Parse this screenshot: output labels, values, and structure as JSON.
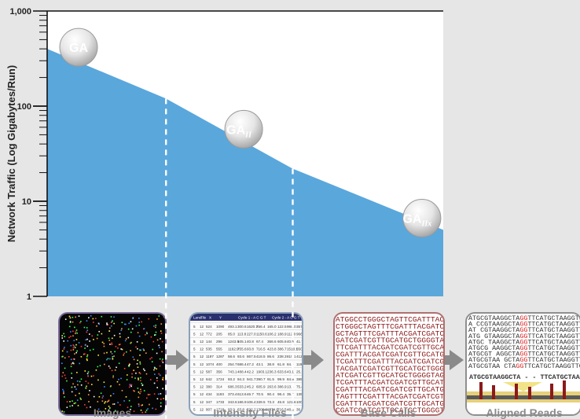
{
  "chart_data": {
    "type": "area",
    "title": "",
    "xlabel": "",
    "ylabel": "Network Traffic (Log Gigabytes/Run)",
    "yscale": "log",
    "ylim": [
      1,
      1000
    ],
    "yticks": [
      {
        "value": 1,
        "label": "1"
      },
      {
        "value": 10,
        "label": "10"
      },
      {
        "value": 100,
        "label": "100"
      },
      {
        "value": 1000,
        "label": "1,000"
      }
    ],
    "x": [
      0,
      0.3,
      0.62,
      1
    ],
    "values": [
      400,
      120,
      22,
      5
    ],
    "annotations": [
      {
        "label": "GA",
        "sub": "",
        "x": 0.0,
        "y": 400
      },
      {
        "label": "GA",
        "sub": "II",
        "x": 0.52,
        "y": 55
      },
      {
        "label": "GA",
        "sub": "IIx",
        "x": 0.97,
        "y": 6.4
      }
    ],
    "dashed_markers": [
      {
        "x": 0.3,
        "y": 120
      },
      {
        "x": 0.62,
        "y": 22
      }
    ],
    "fill_color": "#5aa7dc",
    "background": "#ffffff"
  },
  "pipeline": [
    {
      "label": "Images",
      "icon": "microscope-image-icon"
    },
    {
      "label": "Intensity Files",
      "icon": "table-icon"
    },
    {
      "label": "Base Calls",
      "icon": "sequence-text-icon"
    },
    {
      "label": "Aligned Reads",
      "icon": "alignment-icon"
    }
  ],
  "table_header": [
    "Lane",
    "Tile",
    "X",
    "Y",
    "Cycle 1 - A C G T",
    "Cycle 2 - A C G T"
  ],
  "table_rows": [
    [
      "5",
      "12",
      "524",
      "1090",
      "493.1",
      "300.6",
      "1620.7",
      "256.4",
      "165.0",
      "122.5",
      "966.0",
      "357.8"
    ],
    [
      "5",
      "12",
      "772",
      "205",
      "85.0",
      "113.8",
      "227.0",
      "1150.6",
      "106.2",
      "188.9",
      "112.0",
      "966.8"
    ],
    [
      "5",
      "12",
      "144",
      "296",
      "1243.9",
      "105.1",
      "40.8",
      "67.4",
      "366.6",
      "605.8",
      "40.5",
      "41.7"
    ],
    [
      "5",
      "12",
      "535",
      "555",
      "1162.9",
      "755.6",
      "93.8",
      "716.5",
      "423.8",
      "386.7",
      "1510.1",
      "550.6"
    ],
    [
      "5",
      "12",
      "1197",
      "1287",
      "58.6",
      "93.6",
      "867.5",
      "418.5",
      "86.6",
      "238.3",
      "815.1",
      "412.1"
    ],
    [
      "5",
      "12",
      "1074",
      "400",
      "254.7",
      "686.4",
      "47.2",
      "43.1",
      "38.8",
      "61.8",
      "84.9",
      "1192.9"
    ],
    [
      "5",
      "12",
      "587",
      "356",
      "743.1",
      "488.4",
      "42.2",
      "1903.1",
      "236.3",
      "633.6",
      "43.1",
      "25.1"
    ],
    [
      "5",
      "12",
      "642",
      "1724",
      "93.2",
      "94.3",
      "941.7",
      "390.7",
      "91.5",
      "99.9",
      "84.9",
      "385.9"
    ],
    [
      "5",
      "12",
      "380",
      "314",
      "686.3",
      "533.2",
      "45.2",
      "605.9",
      "263.6",
      "386.9",
      "13.6",
      "75.4"
    ],
    [
      "5",
      "12",
      "434",
      "1193",
      "373.4",
      "613.6",
      "46.7",
      "70.5",
      "90.4",
      "98.4",
      "35.4",
      "1394.9"
    ],
    [
      "5",
      "12",
      "347",
      "1733",
      "343.6",
      "186.9",
      "106.4",
      "339.5",
      "73.3",
      "45.8",
      "121.6",
      "1003.2"
    ],
    [
      "5",
      "12",
      "807",
      "1718",
      "93.9",
      "63.8",
      "222.2",
      "1300.9",
      "1074.6",
      "716.5",
      "48.3",
      "36.0"
    ]
  ],
  "base_calls": [
    "ATGGCCTGGGCTAGTTCGATTTACG",
    "CTGGGCTAGTTTCGATTTACGATCGA",
    "GCTAGTTTCGATTTACGATCGATCGTT",
    "GATCGATCGTTGCATGCTGGGGTAGTG",
    "TTCGATTTACGATCGATCGTTGCATGC",
    "CGATTTACGATCGATCGTTGCATGCTG",
    "TCGATTTCGATTTACGATCGATCGTTG",
    "TACGATCGATCGTTGCATGCTGGGGT",
    "ATCGATCGTTGCATGCTGGGGTAGTGC",
    "TCGATTTACGATCGATCGTTGCATGCA",
    "CGATTTACGATCGATCGTTGCATGCTG",
    "TAGTTTCGATTTACGATCGATCGTTGC",
    "CGATTTACGATCGATCGTTGCATGCTG",
    "CGATCGATCGTTGCATGCTGGGGTAG"
  ],
  "alignment_reads": [
    [
      "ATGCGTAAGGCTA",
      "GG",
      "TTCATGCTAAGGTTCGAA"
    ],
    [
      "A  CCGTAAGGCTA",
      "GG",
      "TTCATGCTAAGGTTCGAA"
    ],
    [
      "AT  CGTAAGGCTA",
      "GG",
      "TTCATGCTAAGGTTCGAA"
    ],
    [
      "ATG  GTAAGGCTA",
      "GG",
      "TTCATGCTAAGGTTCGAA"
    ],
    [
      "ATGC  TAAGGCTA",
      "GG",
      "TTCATGCTAAGGTTCGAA"
    ],
    [
      "ATGCG  AAGGCTA",
      "GG",
      "TTCATGCTAAGGTTCGAA"
    ],
    [
      "ATGCGT  AGGCTA",
      "GG",
      "TTCATGCTAAGGTTCGAA"
    ],
    [
      "ATGCGTAA  GCTA",
      "GG",
      "TTCATGCTAAGGTTCGAA"
    ],
    [
      "ATGCGTAA   CTA",
      "GG",
      "TTCATGCTAAGGTTCGAA"
    ]
  ],
  "alignment_reference": "ATGCGTAAGGCTA - - TTCATGCTAAGGTTCGAA",
  "colors": {
    "background": "#e6e6e6",
    "area": "#5aa7dc",
    "arrow": "#8a8a8a",
    "caption": "#8a8a8a"
  }
}
